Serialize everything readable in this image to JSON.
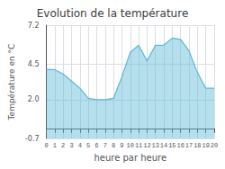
{
  "chart_data": {
    "type": "area",
    "title": "Evolution de la température",
    "xlabel": "heure par heure",
    "ylabel": "Température en °C",
    "x": [
      0,
      1,
      2,
      3,
      4,
      5,
      6,
      7,
      8,
      9,
      10,
      11,
      12,
      13,
      14,
      15,
      16,
      17,
      18,
      19,
      20
    ],
    "values": [
      4.1,
      4.1,
      3.8,
      3.3,
      2.8,
      2.1,
      2.0,
      2.0,
      2.1,
      3.6,
      5.3,
      5.8,
      4.7,
      5.8,
      5.8,
      6.3,
      6.2,
      5.4,
      3.9,
      2.8,
      2.8
    ],
    "color": "#5bb8d8",
    "xlim": [
      0,
      20
    ],
    "xticks": [
      0,
      1,
      2,
      3,
      4,
      5,
      6,
      7,
      8,
      9,
      10,
      11,
      12,
      13,
      14,
      15,
      16,
      17,
      18,
      19,
      20
    ],
    "ylim": [
      -0.7,
      7.2
    ],
    "yticks": [
      -0.7,
      {
        "value": 2.0,
        "label": "2.0"
      },
      4.5,
      7.2
    ],
    "grid": true
  }
}
